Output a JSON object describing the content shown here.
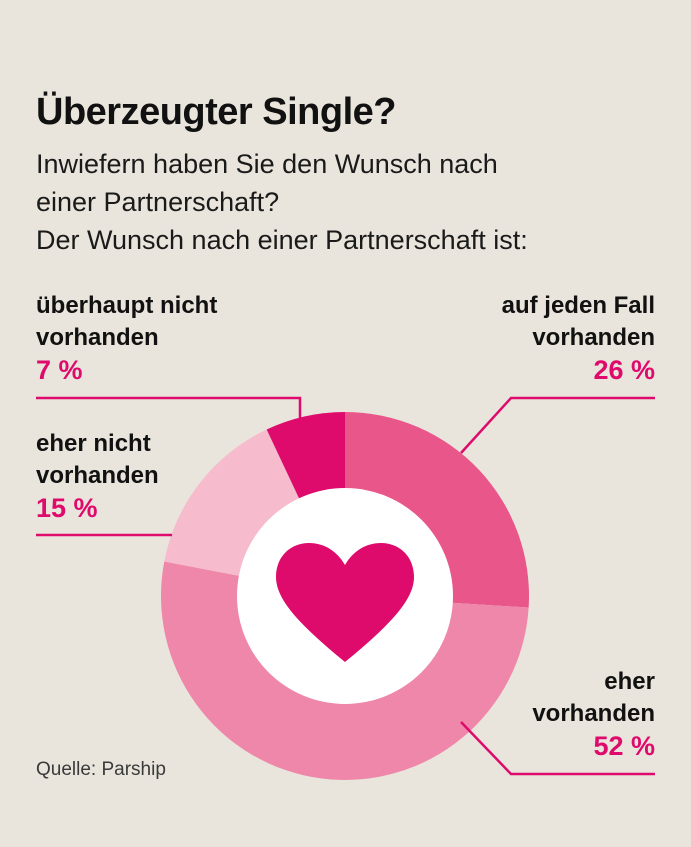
{
  "header": {
    "title": "Überzeugter Single?",
    "subtitle_lines": [
      "Inwiefern haben Sie den Wunsch nach",
      "einer Partnerschaft?",
      "Der Wunsch nach einer Partnerschaft ist:"
    ]
  },
  "source": "Quelle: Parship",
  "colors": {
    "accent": "#de0b6c",
    "background": "#e9e5dc"
  },
  "center_icon": "heart-icon",
  "chart_data": {
    "type": "pie",
    "title": "Überzeugter Single?",
    "subtitle": "Inwiefern haben Sie den Wunsch nach einer Partnerschaft? Der Wunsch nach einer Partnerschaft ist:",
    "unit": "%",
    "slices": [
      {
        "label_lines": [
          "auf jeden Fall",
          "vorhanden"
        ],
        "value": 26,
        "value_label": "26 %",
        "color": "#e8568a"
      },
      {
        "label_lines": [
          "eher",
          "vorhanden"
        ],
        "value": 52,
        "value_label": "52 %",
        "color": "#ee87a9"
      },
      {
        "label_lines": [
          "eher nicht",
          "vorhanden"
        ],
        "value": 15,
        "value_label": "15 %",
        "color": "#f6bbcd"
      },
      {
        "label_lines": [
          "überhaupt nicht",
          "vorhanden"
        ],
        "value": 7,
        "value_label": "7 %",
        "color": "#de0b6c"
      }
    ]
  }
}
